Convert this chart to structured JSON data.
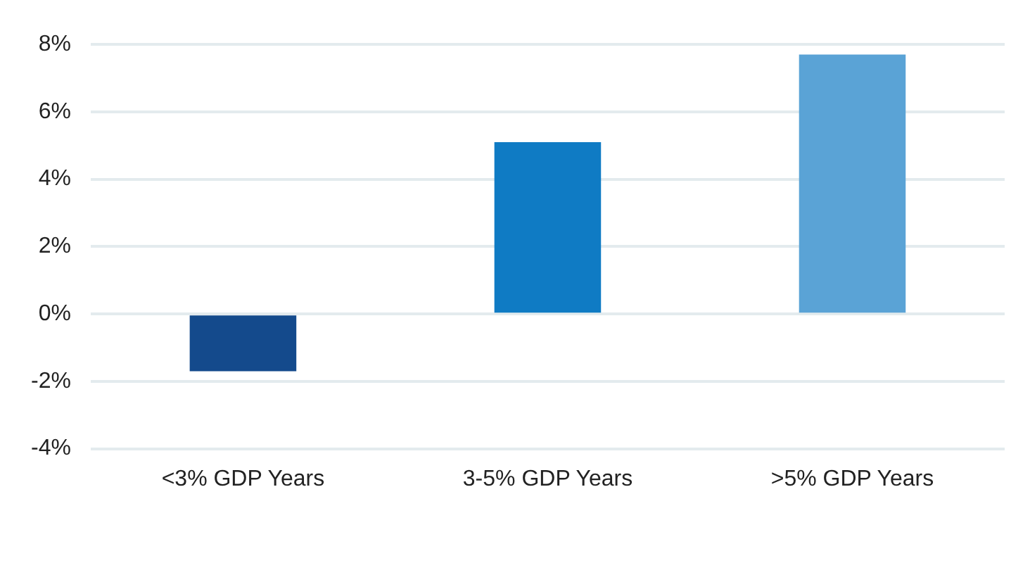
{
  "chart_data": {
    "type": "bar",
    "categories": [
      "<3% GDP Years",
      "3-5% GDP Years",
      ">5% GDP Years"
    ],
    "values": [
      -1.7,
      5.1,
      7.7
    ],
    "colors": [
      "#144a8c",
      "#0f7bc4",
      "#5aa3d6"
    ],
    "ylim": [
      -4,
      8
    ],
    "yticks": [
      {
        "value": -4,
        "label": "-4%"
      },
      {
        "value": -2,
        "label": "-2%"
      },
      {
        "value": 0,
        "label": "0%"
      },
      {
        "value": 2,
        "label": "2%"
      },
      {
        "value": 4,
        "label": "4%"
      },
      {
        "value": 6,
        "label": "6%"
      },
      {
        "value": 8,
        "label": "8%"
      }
    ],
    "grid": "y",
    "legend": false
  }
}
